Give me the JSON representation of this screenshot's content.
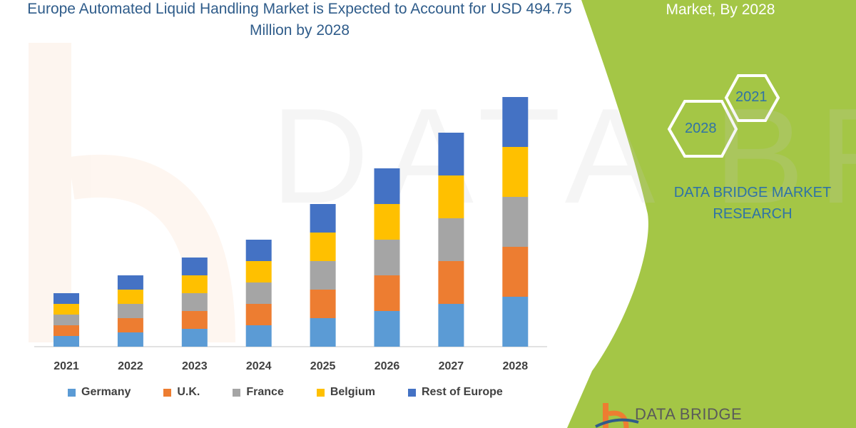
{
  "title": "Europe Automated Liquid Handling Market is Expected to Account for USD 494.75 Million by 2028",
  "side_panel": {
    "title": "Market, By 2028",
    "hex_years": [
      "2021",
      "2028"
    ],
    "brand": "DATA BRIDGE MARKET RESEARCH",
    "logo_text": "DATA BRIDGE",
    "color": "#a4c646"
  },
  "chart_data": {
    "type": "bar",
    "stacked": true,
    "title": "Europe Automated Liquid Handling Market is Expected to Account for USD 494.75 Million by 2028",
    "categories": [
      "2021",
      "2022",
      "2023",
      "2024",
      "2025",
      "2026",
      "2027",
      "2028"
    ],
    "series": [
      {
        "name": "Germany",
        "color": "#5b9bd5",
        "values": [
          15,
          20,
          25,
          30,
          40,
          50,
          60,
          70
        ]
      },
      {
        "name": "U.K.",
        "color": "#ed7d31",
        "values": [
          15,
          20,
          25,
          30,
          40,
          50,
          60,
          70
        ]
      },
      {
        "name": "France",
        "color": "#a5a5a5",
        "values": [
          15,
          20,
          25,
          30,
          40,
          50,
          60,
          70
        ]
      },
      {
        "name": "Belgium",
        "color": "#ffc000",
        "values": [
          15,
          20,
          25,
          30,
          40,
          50,
          60,
          70
        ]
      },
      {
        "name": "Rest of Europe",
        "color": "#4472c4",
        "values": [
          15,
          20,
          25,
          30,
          40,
          50,
          60,
          70
        ]
      }
    ],
    "xlabel": "",
    "ylabel": "",
    "y_axis_shown": false,
    "grid": false,
    "legend_position": "bottom"
  }
}
